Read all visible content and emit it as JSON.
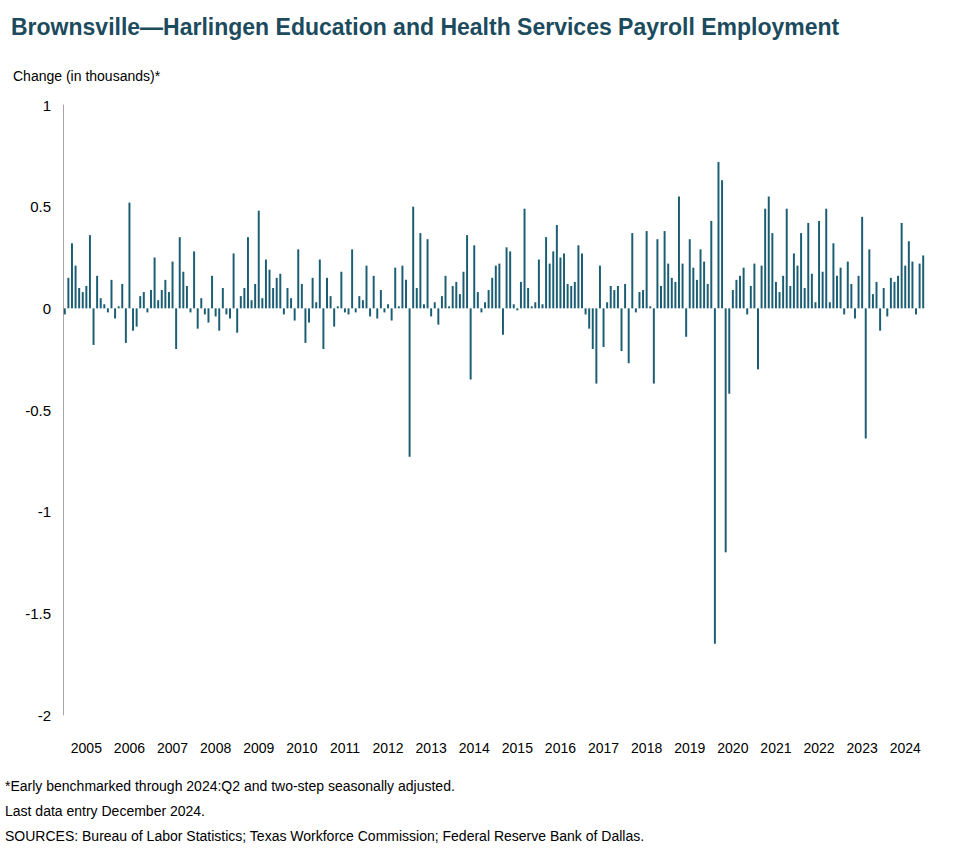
{
  "chart_data": {
    "type": "bar",
    "title": "Brownsville—Harlingen Education and Health Services Payroll Employment",
    "subtitle": "Change (in thousands)*",
    "notes": [
      "*Early benchmarked through 2024:Q2 and two-step seasonally adjusted.",
      "Last data entry December 2024.",
      "SOURCES: Bureau of Labor Statistics; Texas Workforce Commission; Federal Reserve Bank of Dallas."
    ],
    "categories": [
      null,
      null,
      null,
      null,
      null,
      null,
      "2005",
      null,
      null,
      null,
      null,
      null,
      null,
      null,
      null,
      null,
      null,
      null,
      "2006",
      null,
      null,
      null,
      null,
      null,
      null,
      null,
      null,
      null,
      null,
      null,
      "2007",
      null,
      null,
      null,
      null,
      null,
      null,
      null,
      null,
      null,
      null,
      null,
      "2008",
      null,
      null,
      null,
      null,
      null,
      null,
      null,
      null,
      null,
      null,
      null,
      "2009",
      null,
      null,
      null,
      null,
      null,
      null,
      null,
      null,
      null,
      null,
      null,
      "2010",
      null,
      null,
      null,
      null,
      null,
      null,
      null,
      null,
      null,
      null,
      null,
      "2011",
      null,
      null,
      null,
      null,
      null,
      null,
      null,
      null,
      null,
      null,
      null,
      "2012",
      null,
      null,
      null,
      null,
      null,
      null,
      null,
      null,
      null,
      null,
      null,
      "2013",
      null,
      null,
      null,
      null,
      null,
      null,
      null,
      null,
      null,
      null,
      null,
      "2014",
      null,
      null,
      null,
      null,
      null,
      null,
      null,
      null,
      null,
      null,
      null,
      "2015",
      null,
      null,
      null,
      null,
      null,
      null,
      null,
      null,
      null,
      null,
      null,
      "2016",
      null,
      null,
      null,
      null,
      null,
      null,
      null,
      null,
      null,
      null,
      null,
      "2017",
      null,
      null,
      null,
      null,
      null,
      null,
      null,
      null,
      null,
      null,
      null,
      "2018",
      null,
      null,
      null,
      null,
      null,
      null,
      null,
      null,
      null,
      null,
      null,
      "2019",
      null,
      null,
      null,
      null,
      null,
      null,
      null,
      null,
      null,
      null,
      null,
      "2020",
      null,
      null,
      null,
      null,
      null,
      null,
      null,
      null,
      null,
      null,
      null,
      "2021",
      null,
      null,
      null,
      null,
      null,
      null,
      null,
      null,
      null,
      null,
      null,
      "2022",
      null,
      null,
      null,
      null,
      null,
      null,
      null,
      null,
      null,
      null,
      null,
      "2023",
      null,
      null,
      null,
      null,
      null,
      null,
      null,
      null,
      null,
      null,
      null,
      "2024",
      null,
      null,
      null,
      null,
      null
    ],
    "values": [
      -0.03,
      0.15,
      0.32,
      0.21,
      0.1,
      0.08,
      0.11,
      0.36,
      -0.18,
      0.16,
      0.05,
      0.02,
      -0.02,
      0.14,
      -0.05,
      0.01,
      0.12,
      -0.17,
      0.52,
      -0.11,
      -0.09,
      0.06,
      0.08,
      -0.02,
      0.09,
      0.25,
      0.04,
      0.09,
      0.14,
      0.08,
      0.23,
      -0.2,
      0.35,
      0.18,
      0.11,
      -0.02,
      0.28,
      -0.1,
      0.05,
      -0.03,
      -0.07,
      0.16,
      -0.04,
      -0.11,
      0.1,
      -0.03,
      -0.05,
      0.27,
      -0.12,
      0.06,
      0.1,
      0.35,
      0.04,
      0.12,
      0.48,
      0.05,
      0.24,
      0.19,
      0.1,
      0.15,
      0.17,
      -0.03,
      0.1,
      0.05,
      -0.06,
      0.29,
      0.12,
      -0.17,
      -0.07,
      0.15,
      0.03,
      0.24,
      -0.2,
      0.15,
      0.06,
      -0.09,
      0.01,
      0.18,
      -0.02,
      -0.03,
      0.29,
      -0.02,
      0.06,
      0.04,
      0.21,
      -0.04,
      0.16,
      -0.05,
      0.09,
      -0.02,
      0.02,
      -0.06,
      0.2,
      0.01,
      0.21,
      0.14,
      -0.73,
      0.5,
      0.1,
      0.37,
      0.02,
      0.34,
      -0.04,
      0.03,
      -0.08,
      0.06,
      0.16,
      0.01,
      0.11,
      0.13,
      0.07,
      0.18,
      0.36,
      -0.35,
      0.31,
      0.08,
      -0.02,
      0.03,
      0.09,
      0.15,
      0.21,
      0.22,
      -0.13,
      0.3,
      0.28,
      0.02,
      -0.01,
      0.13,
      0.49,
      0.1,
      0.01,
      0.03,
      0.24,
      0.02,
      0.35,
      0.22,
      0.28,
      0.41,
      0.25,
      0.27,
      0.12,
      0.11,
      0.13,
      0.31,
      0.27,
      -0.03,
      -0.1,
      -0.2,
      -0.37,
      0.21,
      -0.19,
      0.03,
      0.11,
      0.09,
      0.11,
      -0.21,
      0.12,
      -0.27,
      0.37,
      -0.02,
      0.08,
      0.09,
      0.38,
      0.01,
      -0.37,
      0.34,
      0.11,
      0.38,
      0.22,
      0.15,
      0.13,
      0.55,
      0.22,
      -0.14,
      0.34,
      0.2,
      0.14,
      0.29,
      0.23,
      0.12,
      0.43,
      -1.65,
      0.72,
      0.63,
      -1.2,
      -0.42,
      0.09,
      0.14,
      0.16,
      0.2,
      -0.03,
      0.11,
      0.22,
      -0.3,
      0.21,
      0.49,
      0.55,
      0.37,
      0.13,
      0.08,
      0.16,
      0.49,
      0.11,
      0.27,
      0.21,
      0.37,
      0.1,
      0.42,
      0.17,
      0.03,
      0.43,
      0.18,
      0.49,
      0.03,
      0.32,
      0.16,
      0.2,
      -0.03,
      0.23,
      0.12,
      -0.05,
      0.16,
      0.45,
      -0.64,
      0.29,
      0.07,
      0.13,
      -0.11,
      0.1,
      -0.04,
      0.15,
      0.13,
      0.16,
      0.42,
      0.21,
      0.33,
      0.23,
      -0.03,
      0.22,
      0.26
    ],
    "color": "#1b5e74",
    "ylim": [
      -2,
      1
    ],
    "yticks": [
      -2,
      -1.5,
      -1,
      -0.5,
      0,
      0.5,
      1
    ],
    "grid": false
  }
}
